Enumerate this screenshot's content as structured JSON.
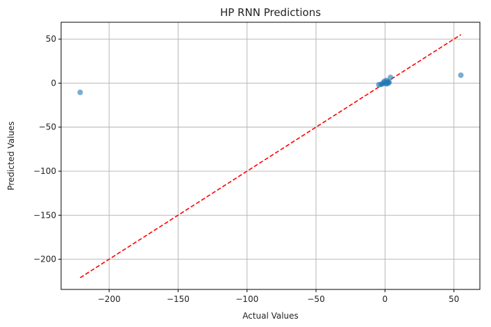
{
  "chart_data": {
    "type": "scatter",
    "title": "HP RNN Predictions",
    "xlabel": "Actual Values",
    "ylabel": "Predicted Values",
    "xlim": [
      -234.8,
      68.8
    ],
    "ylim": [
      -234.3,
      69.1
    ],
    "xticks": [
      -200,
      -150,
      -100,
      -50,
      0,
      50
    ],
    "xtick_labels": [
      "−200",
      "−150",
      "−100",
      "−50",
      "0",
      "50"
    ],
    "yticks": [
      -200,
      -150,
      -100,
      -50,
      0,
      50
    ],
    "ytick_labels": [
      "−200",
      "−150",
      "−100",
      "−50",
      "0",
      "50"
    ],
    "grid": true,
    "series": [
      {
        "name": "predictions",
        "marker": "circle",
        "color": "#1f77b4",
        "alpha": 0.6,
        "points": [
          {
            "x": -221.0,
            "y": -10.5
          },
          {
            "x": 55.0,
            "y": 9.0
          },
          {
            "x": 4.0,
            "y": 6.5
          },
          {
            "x": 2.0,
            "y": 1.5
          },
          {
            "x": 1.0,
            "y": 3.0
          },
          {
            "x": 0.5,
            "y": -0.5
          },
          {
            "x": -1.0,
            "y": 0.5
          },
          {
            "x": -2.0,
            "y": -1.0
          },
          {
            "x": -3.0,
            "y": -1.5
          },
          {
            "x": -4.5,
            "y": -1.8
          },
          {
            "x": 1.5,
            "y": -0.8
          },
          {
            "x": 2.5,
            "y": 0.2
          },
          {
            "x": -0.5,
            "y": 2.0
          },
          {
            "x": 3.0,
            "y": 1.0
          }
        ]
      },
      {
        "name": "ideal",
        "type": "line",
        "style": "dashed",
        "color": "#ff0000",
        "x": [
          -221,
          55
        ],
        "y": [
          -221,
          55
        ]
      }
    ]
  }
}
